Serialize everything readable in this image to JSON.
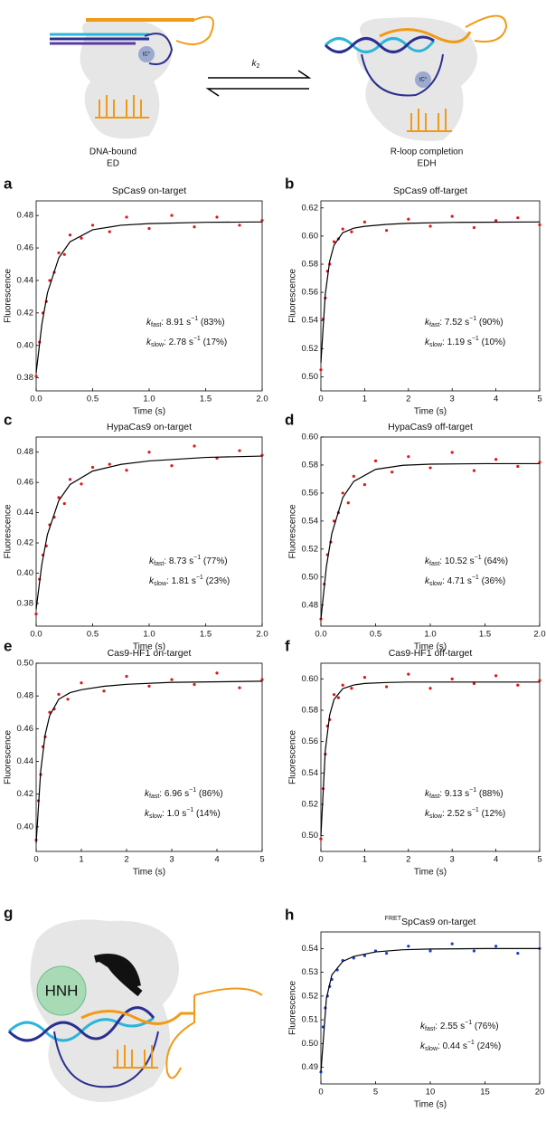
{
  "diagram": {
    "k_symbol": "k",
    "k_sub": "2",
    "marker_left": "tC°",
    "marker_right": "tC°",
    "left_label": [
      "DNA-bound",
      "ED"
    ],
    "right_label": [
      "R-loop completion",
      "EDH"
    ]
  },
  "panel_g": {
    "label": "g",
    "hnh": "HNH"
  },
  "chart_data": [
    {
      "type": "scatter",
      "panel_label": "a",
      "title": "SpCas9 on-target",
      "xlabel": "Time (s)",
      "ylabel": "Fluorescence",
      "xlim": [
        0,
        2
      ],
      "xticks": [
        {
          "value": 0,
          "label": "0.0"
        },
        0.5,
        {
          "value": 1,
          "label": "1.0"
        },
        1.5,
        {
          "value": 2,
          "label": "2.0"
        }
      ],
      "ylim": [
        0.372,
        0.489
      ],
      "yticks": [
        0.38,
        {
          "value": 0.4,
          "label": "0.40"
        },
        0.42,
        0.44,
        0.46,
        0.48
      ],
      "series": [
        {
          "type": "scatter",
          "color": "#e3131b",
          "x": [
            0,
            0.03,
            0.06,
            0.09,
            0.12,
            0.16,
            0.2,
            0.25,
            0.3,
            0.4,
            0.5,
            0.65,
            0.8,
            1.0,
            1.2,
            1.4,
            1.6,
            1.8,
            2.0
          ],
          "values": [
            0.381,
            0.402,
            0.42,
            0.427,
            0.44,
            0.445,
            0.457,
            0.456,
            0.468,
            0.466,
            0.474,
            0.47,
            0.479,
            0.472,
            0.48,
            0.473,
            0.479,
            0.474,
            0.477
          ]
        },
        {
          "type": "line",
          "color": "#000000",
          "x": [
            0,
            0.05,
            0.1,
            0.2,
            0.3,
            0.5,
            0.75,
            1,
            1.5,
            2
          ],
          "values": [
            0.383,
            0.4128,
            0.4324,
            0.4539,
            0.4638,
            0.4712,
            0.474,
            0.475,
            0.4758,
            0.476
          ]
        }
      ],
      "rates": [
        {
          "k": "k",
          "sub": "fast",
          "text": ": 8.91 s",
          "sup": "−1",
          "tail": " (83%)"
        },
        {
          "k": "k",
          "sub": "slow",
          "text": ": 2.78 s",
          "sup": "−1",
          "tail": " (17%)"
        }
      ]
    },
    {
      "type": "scatter",
      "panel_label": "b",
      "title": "SpCas9 off-target",
      "xlabel": "Time (s)",
      "ylabel": "Fluorescence",
      "xlim": [
        0,
        5
      ],
      "xticks": [
        0,
        1,
        2,
        3,
        4,
        5
      ],
      "ylim": [
        0.49,
        0.625
      ],
      "yticks": [
        {
          "value": 0.5,
          "label": "0.50"
        },
        0.52,
        0.54,
        0.56,
        0.58,
        {
          "value": 0.6,
          "label": "0.60"
        },
        0.62
      ],
      "series": [
        {
          "type": "scatter",
          "color": "#e3131b",
          "x": [
            0,
            0.05,
            0.1,
            0.15,
            0.2,
            0.3,
            0.4,
            0.5,
            0.7,
            1,
            1.5,
            2,
            2.5,
            3,
            3.5,
            4,
            4.5,
            5
          ],
          "values": [
            0.505,
            0.541,
            0.556,
            0.575,
            0.58,
            0.596,
            0.598,
            0.605,
            0.603,
            0.61,
            0.604,
            0.612,
            0.607,
            0.614,
            0.606,
            0.611,
            0.613,
            0.608
          ]
        },
        {
          "type": "line",
          "color": "#000000",
          "x": [
            0,
            0.1,
            0.2,
            0.3,
            0.5,
            0.75,
            1,
            1.5,
            2,
            3,
            5
          ],
          "values": [
            0.51,
            0.5587,
            0.582,
            0.5936,
            0.6024,
            0.6056,
            0.6069,
            0.6083,
            0.6091,
            0.6097,
            0.61
          ]
        }
      ],
      "rates": [
        {
          "k": "k",
          "sub": "fast",
          "text": ": 7.52 s",
          "sup": "−1",
          "tail": " (90%)"
        },
        {
          "k": "k",
          "sub": "slow",
          "text": ": 1.19 s",
          "sup": "−1",
          "tail": " (10%)"
        }
      ]
    },
    {
      "type": "scatter",
      "panel_label": "c",
      "title": "HypaCas9 on-target",
      "xlabel": "Time (s)",
      "ylabel": "Fluorescence",
      "xlim": [
        0,
        2
      ],
      "xticks": [
        {
          "value": 0,
          "label": "0.0"
        },
        0.5,
        {
          "value": 1,
          "label": "1.0"
        },
        1.5,
        {
          "value": 2,
          "label": "2.0"
        }
      ],
      "ylim": [
        0.365,
        0.49
      ],
      "yticks": [
        0.38,
        {
          "value": 0.4,
          "label": "0.40"
        },
        0.42,
        0.44,
        0.46,
        0.48
      ],
      "series": [
        {
          "type": "scatter",
          "color": "#e3131b",
          "x": [
            0,
            0.03,
            0.06,
            0.09,
            0.12,
            0.16,
            0.2,
            0.25,
            0.3,
            0.4,
            0.5,
            0.65,
            0.8,
            1.0,
            1.2,
            1.4,
            1.6,
            1.8,
            2.0
          ],
          "values": [
            0.373,
            0.396,
            0.412,
            0.418,
            0.432,
            0.437,
            0.45,
            0.446,
            0.462,
            0.459,
            0.47,
            0.472,
            0.468,
            0.48,
            0.471,
            0.484,
            0.476,
            0.481,
            0.478
          ]
        },
        {
          "type": "line",
          "color": "#000000",
          "x": [
            0,
            0.05,
            0.1,
            0.2,
            0.3,
            0.5,
            0.75,
            1,
            1.5,
            2
          ],
          "values": [
            0.376,
            0.4058,
            0.4256,
            0.448,
            0.4586,
            0.4675,
            0.4719,
            0.4742,
            0.4765,
            0.4774
          ]
        }
      ],
      "rates": [
        {
          "k": "k",
          "sub": "fast",
          "text": ": 8.73 s",
          "sup": "−1",
          "tail": " (77%)"
        },
        {
          "k": "k",
          "sub": "slow",
          "text": ": 1.81 s",
          "sup": "−1",
          "tail": " (23%)"
        }
      ]
    },
    {
      "type": "scatter",
      "panel_label": "d",
      "title": "HypaCas9 off-target",
      "xlabel": "Time (s)",
      "ylabel": "Fluorescence",
      "xlim": [
        0,
        2
      ],
      "xticks": [
        {
          "value": 0,
          "label": "0.0"
        },
        0.5,
        {
          "value": 1,
          "label": "1.0"
        },
        1.5,
        {
          "value": 2,
          "label": "2.0"
        }
      ],
      "ylim": [
        0.465,
        0.6
      ],
      "yticks": [
        0.48,
        {
          "value": 0.5,
          "label": "0.50"
        },
        0.52,
        0.54,
        0.56,
        0.58,
        {
          "value": 0.6,
          "label": "0.60"
        }
      ],
      "series": [
        {
          "type": "scatter",
          "color": "#e3131b",
          "x": [
            0,
            0.03,
            0.06,
            0.09,
            0.12,
            0.16,
            0.2,
            0.25,
            0.3,
            0.4,
            0.5,
            0.65,
            0.8,
            1.0,
            1.2,
            1.4,
            1.6,
            1.8,
            2.0
          ],
          "values": [
            0.47,
            0.495,
            0.516,
            0.525,
            0.54,
            0.546,
            0.56,
            0.553,
            0.572,
            0.566,
            0.583,
            0.575,
            0.586,
            0.578,
            0.589,
            0.576,
            0.584,
            0.579,
            0.582
          ]
        },
        {
          "type": "line",
          "color": "#000000",
          "x": [
            0,
            0.05,
            0.1,
            0.2,
            0.3,
            0.5,
            0.75,
            1,
            1.5,
            2
          ],
          "values": [
            0.47,
            0.5074,
            0.5312,
            0.5568,
            0.5683,
            0.5769,
            0.5798,
            0.5806,
            0.581,
            0.581
          ]
        }
      ],
      "rates": [
        {
          "k": "k",
          "sub": "fast",
          "text": ": 10.52 s",
          "sup": "−1",
          "tail": " (64%)"
        },
        {
          "k": "k",
          "sub": "slow",
          "text": ": 4.71 s",
          "sup": "−1",
          "tail": " (36%)"
        }
      ]
    },
    {
      "type": "scatter",
      "panel_label": "e",
      "title": "Cas9-HF1 on-target",
      "xlabel": "Time (s)",
      "ylabel": "Fluorescence",
      "xlim": [
        0,
        5
      ],
      "xticks": [
        0,
        1,
        2,
        3,
        4,
        5
      ],
      "ylim": [
        0.385,
        0.5
      ],
      "yticks": [
        {
          "value": 0.4,
          "label": "0.40"
        },
        0.42,
        0.44,
        0.46,
        0.48,
        {
          "value": 0.5,
          "label": "0.50"
        }
      ],
      "series": [
        {
          "type": "scatter",
          "color": "#e3131b",
          "x": [
            0,
            0.05,
            0.1,
            0.15,
            0.2,
            0.3,
            0.4,
            0.5,
            0.7,
            1,
            1.5,
            2,
            2.5,
            3,
            3.5,
            4,
            4.5,
            5
          ],
          "values": [
            0.392,
            0.416,
            0.432,
            0.449,
            0.455,
            0.47,
            0.472,
            0.481,
            0.478,
            0.488,
            0.483,
            0.492,
            0.486,
            0.49,
            0.487,
            0.494,
            0.485,
            0.49
          ]
        },
        {
          "type": "line",
          "color": "#000000",
          "x": [
            0,
            0.1,
            0.2,
            0.3,
            0.5,
            0.75,
            1,
            1.5,
            2,
            3,
            5
          ],
          "values": [
            0.39,
            0.434,
            0.4564,
            0.4681,
            0.478,
            0.482,
            0.4838,
            0.4859,
            0.4871,
            0.4883,
            0.489
          ]
        }
      ],
      "rates": [
        {
          "k": "k",
          "sub": "fast",
          "text": ": 6.96 s",
          "sup": "−1",
          "tail": " (86%)"
        },
        {
          "k": "k",
          "sub": "slow",
          "text": ": 1.0 s",
          "sup": "−1",
          "tail": " (14%)"
        }
      ]
    },
    {
      "type": "scatter",
      "panel_label": "f",
      "title": "Cas9-HF1 off-target",
      "xlabel": "Time (s)",
      "ylabel": "Fluorescence",
      "xlim": [
        0,
        5
      ],
      "xticks": [
        0,
        1,
        2,
        3,
        4,
        5
      ],
      "ylim": [
        0.49,
        0.61
      ],
      "yticks": [
        {
          "value": 0.5,
          "label": "0.50"
        },
        0.52,
        0.54,
        0.56,
        0.58,
        {
          "value": 0.6,
          "label": "0.60"
        }
      ],
      "series": [
        {
          "type": "scatter",
          "color": "#e3131b",
          "x": [
            0,
            0.05,
            0.1,
            0.15,
            0.2,
            0.3,
            0.4,
            0.5,
            0.7,
            1,
            1.5,
            2,
            2.5,
            3,
            3.5,
            4,
            4.5,
            5
          ],
          "values": [
            0.498,
            0.53,
            0.552,
            0.57,
            0.574,
            0.59,
            0.588,
            0.596,
            0.594,
            0.601,
            0.595,
            0.603,
            0.594,
            0.6,
            0.597,
            0.602,
            0.596,
            0.599
          ]
        },
        {
          "type": "line",
          "color": "#000000",
          "x": [
            0,
            0.1,
            0.2,
            0.3,
            0.5,
            0.75,
            1,
            1.5,
            2,
            3,
            5
          ],
          "values": [
            0.5,
            0.5543,
            0.577,
            0.5869,
            0.5938,
            0.5961,
            0.5971,
            0.5977,
            0.598,
            0.598,
            0.598
          ]
        }
      ],
      "rates": [
        {
          "k": "k",
          "sub": "fast",
          "text": ": 9.13 s",
          "sup": "−1",
          "tail": " (88%)"
        },
        {
          "k": "k",
          "sub": "slow",
          "text": ": 2.52 s",
          "sup": "−1",
          "tail": " (12%)"
        }
      ]
    },
    {
      "type": "scatter",
      "panel_label": "h",
      "title_sup": "FRET",
      "title": "SpCas9 on-target",
      "xlabel": "Time (s)",
      "ylabel": "Fluorescence",
      "xlim": [
        0,
        20
      ],
      "xticks": [
        0,
        5,
        10,
        15,
        20
      ],
      "ylim": [
        0.483,
        0.547
      ],
      "yticks": [
        0.49,
        {
          "value": 0.5,
          "label": "0.50"
        },
        0.51,
        0.52,
        0.53,
        0.54
      ],
      "series": [
        {
          "type": "scatter",
          "color": "#1b3fd6",
          "x": [
            0,
            0.2,
            0.4,
            0.6,
            0.8,
            1,
            1.5,
            2,
            3,
            4,
            5,
            6,
            8,
            10,
            12,
            14,
            16,
            18,
            20
          ],
          "values": [
            0.488,
            0.507,
            0.515,
            0.52,
            0.524,
            0.527,
            0.531,
            0.535,
            0.536,
            0.537,
            0.539,
            0.538,
            0.541,
            0.539,
            0.542,
            0.539,
            0.541,
            0.538,
            0.54
          ]
        },
        {
          "type": "line",
          "color": "#000000",
          "x": [
            0,
            0.5,
            1,
            2,
            3,
            5,
            7.5,
            10,
            15,
            20
          ],
          "values": [
            0.488,
            0.5189,
            0.5289,
            0.5346,
            0.5367,
            0.5386,
            0.5395,
            0.5398,
            0.54,
            0.54
          ]
        }
      ],
      "rates": [
        {
          "k": "k",
          "sub": "fast",
          "text": ": 2.55 s",
          "sup": "−1",
          "tail": " (76%)"
        },
        {
          "k": "k",
          "sub": "slow",
          "text": ": 0.44 s",
          "sup": "−1",
          "tail": " (24%)"
        }
      ]
    }
  ]
}
